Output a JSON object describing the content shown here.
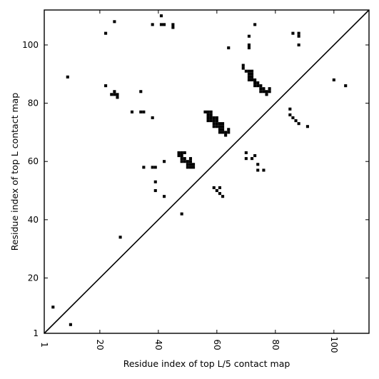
{
  "chart_data": {
    "type": "scatter",
    "title": "",
    "xlabel": "Residue index of top L/5 contact map",
    "ylabel": "Residue index of top L contact map",
    "xlim": [
      1,
      112
    ],
    "ylim": [
      1,
      112
    ],
    "xticks": [
      1,
      20,
      40,
      60,
      80,
      100
    ],
    "yticks": [
      1,
      20,
      40,
      60,
      80,
      100
    ],
    "x_tick_rotation": 90,
    "grid": false,
    "diagonal": true,
    "marker": "square",
    "color": "#000000",
    "series": [
      {
        "points": [
          [
            4,
            10
          ],
          [
            10,
            4
          ],
          [
            9,
            89
          ],
          [
            22,
            104
          ],
          [
            25,
            108
          ],
          [
            22,
            86
          ],
          [
            24,
            83
          ],
          [
            25,
            83
          ],
          [
            25,
            84
          ],
          [
            26,
            83
          ],
          [
            26,
            82
          ],
          [
            27,
            34
          ],
          [
            31,
            77
          ],
          [
            34,
            84
          ],
          [
            34,
            77
          ],
          [
            35,
            77
          ],
          [
            35,
            58
          ],
          [
            38,
            107
          ],
          [
            38,
            75
          ],
          [
            38,
            58
          ],
          [
            39,
            58
          ],
          [
            39,
            53
          ],
          [
            39,
            50
          ],
          [
            41,
            110
          ],
          [
            41,
            107
          ],
          [
            42,
            107
          ],
          [
            42,
            60
          ],
          [
            42,
            48
          ],
          [
            45,
            107
          ],
          [
            45,
            106
          ],
          [
            47,
            63
          ],
          [
            47,
            62
          ],
          [
            48,
            63
          ],
          [
            48,
            62
          ],
          [
            48,
            61
          ],
          [
            48,
            60
          ],
          [
            48,
            42
          ],
          [
            49,
            63
          ],
          [
            49,
            61
          ],
          [
            49,
            60
          ],
          [
            50,
            60
          ],
          [
            50,
            59
          ],
          [
            50,
            58
          ],
          [
            51,
            61
          ],
          [
            51,
            60
          ],
          [
            51,
            59
          ],
          [
            51,
            58
          ],
          [
            52,
            59
          ],
          [
            52,
            58
          ],
          [
            56,
            77
          ],
          [
            57,
            77
          ],
          [
            57,
            76
          ],
          [
            57,
            75
          ],
          [
            57,
            74
          ],
          [
            58,
            77
          ],
          [
            58,
            76
          ],
          [
            58,
            75
          ],
          [
            58,
            74
          ],
          [
            59,
            75
          ],
          [
            59,
            74
          ],
          [
            59,
            73
          ],
          [
            59,
            72
          ],
          [
            59,
            51
          ],
          [
            60,
            75
          ],
          [
            60,
            74
          ],
          [
            60,
            73
          ],
          [
            60,
            72
          ],
          [
            60,
            50
          ],
          [
            61,
            73
          ],
          [
            61,
            72
          ],
          [
            61,
            71
          ],
          [
            61,
            70
          ],
          [
            61,
            51
          ],
          [
            61,
            49
          ],
          [
            62,
            73
          ],
          [
            62,
            72
          ],
          [
            62,
            71
          ],
          [
            62,
            70
          ],
          [
            62,
            48
          ],
          [
            63,
            70
          ],
          [
            63,
            69
          ],
          [
            64,
            71
          ],
          [
            64,
            70
          ],
          [
            64,
            99
          ],
          [
            69,
            93
          ],
          [
            69,
            92
          ],
          [
            70,
            91
          ],
          [
            70,
            63
          ],
          [
            70,
            61
          ],
          [
            71,
            103
          ],
          [
            71,
            100
          ],
          [
            71,
            99
          ],
          [
            71,
            91
          ],
          [
            71,
            90
          ],
          [
            71,
            89
          ],
          [
            71,
            88
          ],
          [
            72,
            91
          ],
          [
            72,
            90
          ],
          [
            72,
            89
          ],
          [
            72,
            88
          ],
          [
            72,
            61
          ],
          [
            73,
            107
          ],
          [
            73,
            88
          ],
          [
            73,
            87
          ],
          [
            73,
            86
          ],
          [
            73,
            62
          ],
          [
            74,
            87
          ],
          [
            74,
            86
          ],
          [
            74,
            59
          ],
          [
            74,
            57
          ],
          [
            75,
            86
          ],
          [
            75,
            85
          ],
          [
            75,
            84
          ],
          [
            76,
            85
          ],
          [
            76,
            84
          ],
          [
            76,
            57
          ],
          [
            77,
            84
          ],
          [
            77,
            83
          ],
          [
            78,
            85
          ],
          [
            78,
            84
          ],
          [
            85,
            78
          ],
          [
            85,
            76
          ],
          [
            86,
            104
          ],
          [
            86,
            75
          ],
          [
            87,
            74
          ],
          [
            88,
            104
          ],
          [
            88,
            103
          ],
          [
            88,
            100
          ],
          [
            88,
            73
          ],
          [
            91,
            72
          ],
          [
            100,
            88
          ],
          [
            104,
            86
          ]
        ]
      }
    ]
  }
}
